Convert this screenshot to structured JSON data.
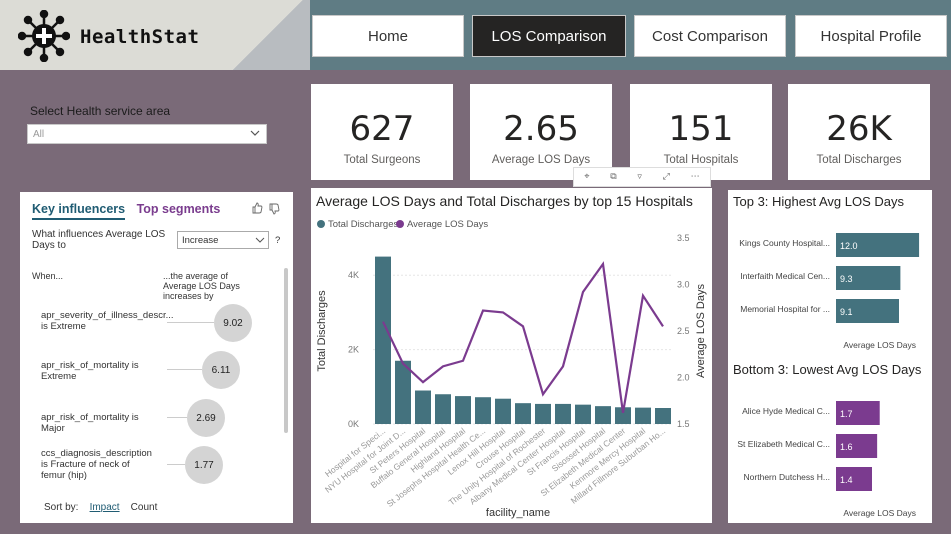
{
  "app": {
    "name": "HealthStat"
  },
  "nav": [
    {
      "label": "Home",
      "active": false
    },
    {
      "label": "LOS Comparison",
      "active": true
    },
    {
      "label": "Cost Comparison",
      "active": false
    },
    {
      "label": "Hospital Profile",
      "active": false
    }
  ],
  "slicer": {
    "label": "Select Health service area",
    "value": "All"
  },
  "kpis": [
    {
      "value": "627",
      "label": "Total Surgeons"
    },
    {
      "value": "2.65",
      "label": "Average LOS Days"
    },
    {
      "value": "151",
      "label": "Total Hospitals"
    },
    {
      "value": "26K",
      "label": "Total Discharges"
    }
  ],
  "key_influencers": {
    "tab_active": "Key influencers",
    "tab_other": "Top segments",
    "question_prefix": "What influences Average LOS Days to",
    "dropdown_value": "Increase",
    "help": "?",
    "col_when": "When...",
    "col_effect": "...the average of Average LOS Days increases by",
    "items": [
      {
        "factor": "apr_severity_of_illness_descr... is Extreme",
        "value": "9.02"
      },
      {
        "factor": "apr_risk_of_mortality is Extreme",
        "value": "6.11"
      },
      {
        "factor": "apr_risk_of_mortality is Major",
        "value": "2.69"
      },
      {
        "factor": "ccs_diagnosis_description is Fracture of neck of femur (hip)",
        "value": "1.77"
      }
    ],
    "sort_by_label": "Sort by:",
    "sort_impact": "Impact",
    "sort_count": "Count"
  },
  "colors": {
    "discharges": "#44727e",
    "los": "#7b3b8f",
    "teal_bar": "#44727e",
    "purple_bar": "#7b3b8f"
  },
  "chart_data": [
    {
      "type": "bar",
      "title": "Average LOS Days and Total Discharges by top 15 Hospitals",
      "legend": [
        "Total Discharges",
        "Average LOS Days"
      ],
      "legend_position": "top-left",
      "xlabel": "facility_name",
      "ylabel": "Total Discharges",
      "y2label": "Average LOS Days",
      "y_ticks": [
        "0K",
        "2K",
        "4K"
      ],
      "y2_ticks": [
        "1.5",
        "2.0",
        "2.5",
        "3.0",
        "3.5"
      ],
      "ylim": [
        0,
        5000
      ],
      "y2lim": [
        1.5,
        3.5
      ],
      "categories": [
        "Hospital for Speci...",
        "NYU Hospital for Joint D...",
        "St Peters Hospital",
        "Buffalo General Hospital",
        "Highland Hospital",
        "St Josephs Hospital Health Ce...",
        "Lenox Hill Hospital",
        "Crouse Hospital",
        "The Unity Hospital of Rochester",
        "Albany Medical Center Hospital",
        "St Francis Hospital",
        "Sisosset Hospital",
        "St Elizabeth Medical Center",
        "Kenmore Mercy Hospital",
        "Millard Fillmore Suburban Ho..."
      ],
      "series": [
        {
          "name": "Total Discharges",
          "kind": "bar",
          "values": [
            4500,
            1700,
            900,
            800,
            750,
            720,
            680,
            560,
            540,
            540,
            520,
            480,
            450,
            440,
            430
          ]
        },
        {
          "name": "Average LOS Days",
          "kind": "line",
          "values": [
            2.6,
            2.15,
            1.95,
            2.12,
            2.18,
            2.72,
            2.7,
            2.55,
            1.82,
            2.12,
            2.92,
            3.22,
            1.62,
            2.88,
            2.55
          ]
        }
      ]
    },
    {
      "type": "bar",
      "title": "Top 3: Highest Avg LOS Days",
      "orientation": "horizontal",
      "categories": [
        "Kings County Hospital...",
        "Interfaith Medical Cen...",
        "Memorial Hospital for ..."
      ],
      "values": [
        12.0,
        9.3,
        9.1
      ],
      "labels": [
        "12.0",
        "9.3",
        "9.1"
      ],
      "xlabel": "Average LOS Days",
      "xlim": [
        0,
        13
      ]
    },
    {
      "type": "bar",
      "title": "Bottom 3: Lowest Avg LOS Days",
      "orientation": "horizontal",
      "categories": [
        "Alice Hyde Medical C...",
        "St Elizabeth Medical C...",
        "Northern Dutchess H..."
      ],
      "values": [
        1.7,
        1.6,
        1.4
      ],
      "labels": [
        "1.7",
        "1.6",
        "1.4"
      ],
      "xlabel": "Average LOS Days",
      "xlim": [
        0,
        3.5
      ]
    }
  ]
}
